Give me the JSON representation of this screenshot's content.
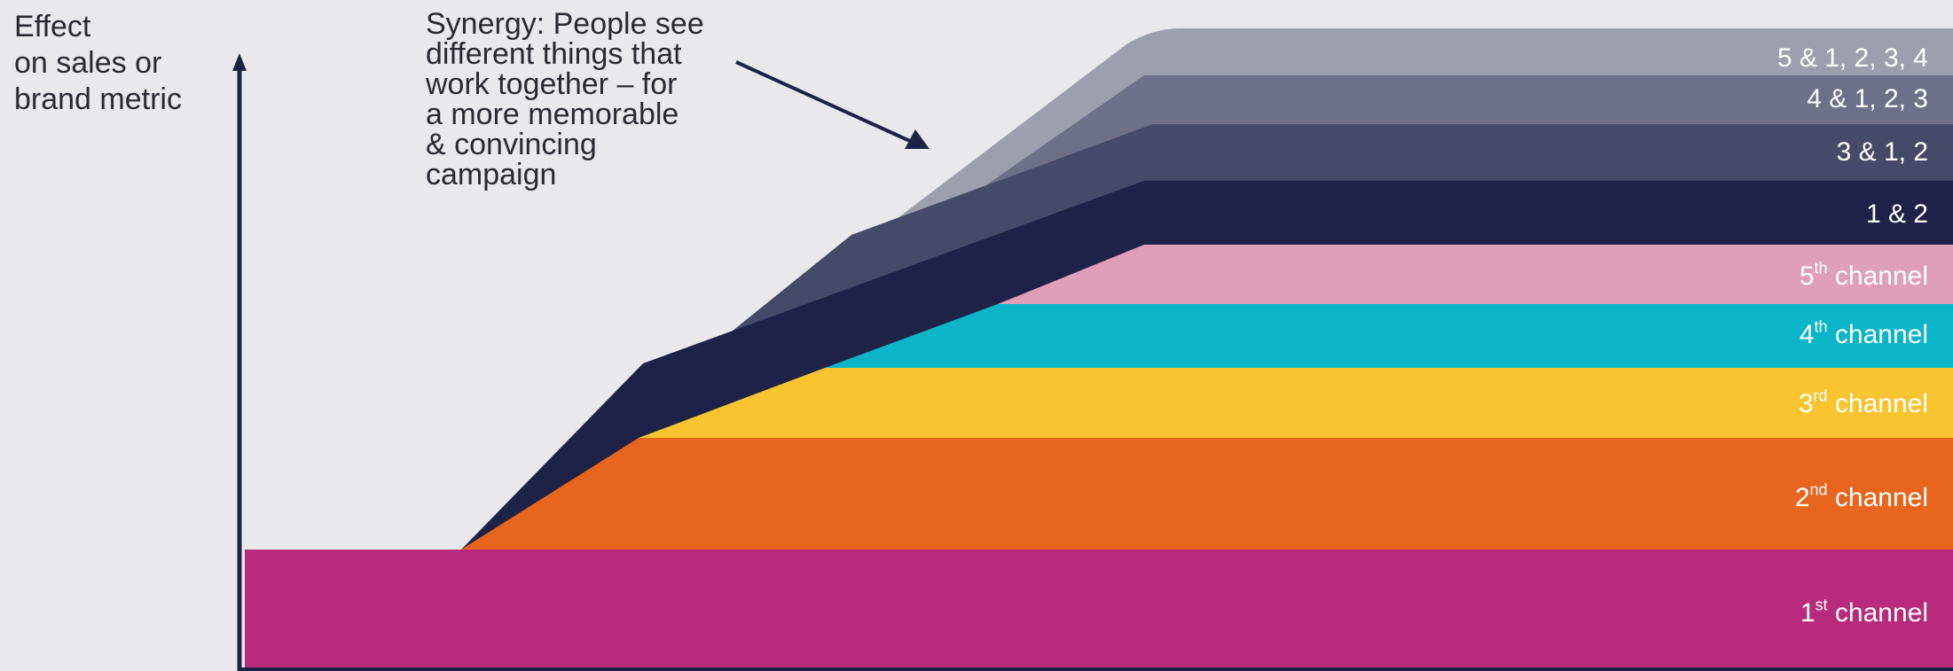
{
  "y_axis_label": [
    "Effect",
    "on sales or",
    "brand metric"
  ],
  "annotation": [
    "Synergy: People see",
    "different things that",
    "work together – for",
    "a more memorable",
    "& convincing",
    "campaign"
  ],
  "bands": [
    {
      "id": "ch1",
      "label": "1",
      "suffix": "st",
      "rest": " channel",
      "color": "#b72a7c"
    },
    {
      "id": "ch2",
      "label": "2",
      "suffix": "nd",
      "rest": " channel",
      "color": "#e8651d"
    },
    {
      "id": "ch3",
      "label": "3",
      "suffix": "rd",
      "rest": " channel",
      "color": "#f8c42f"
    },
    {
      "id": "ch4",
      "label": "4",
      "suffix": "th",
      "rest": " channel",
      "color": "#0bb5c8"
    },
    {
      "id": "ch5",
      "label": "5",
      "suffix": "th",
      "rest": " channel",
      "color": "#e09fb8"
    },
    {
      "id": "syn12",
      "label": "1 & 2",
      "suffix": "",
      "rest": "",
      "color": "#1e2247"
    },
    {
      "id": "syn3",
      "label": "3 & 1, 2",
      "suffix": "",
      "rest": "",
      "color": "#464a69"
    },
    {
      "id": "syn4",
      "label": "4 & 1, 2, 3",
      "suffix": "",
      "rest": "",
      "color": "#6e7089"
    },
    {
      "id": "syn5",
      "label": "5 & 1, 2, 3, 4",
      "suffix": "",
      "rest": "",
      "color": "#9d9fae"
    }
  ],
  "colors": {
    "background": "#e9e9ec",
    "axis": "#1e2247",
    "text": "#2a2a32"
  }
}
